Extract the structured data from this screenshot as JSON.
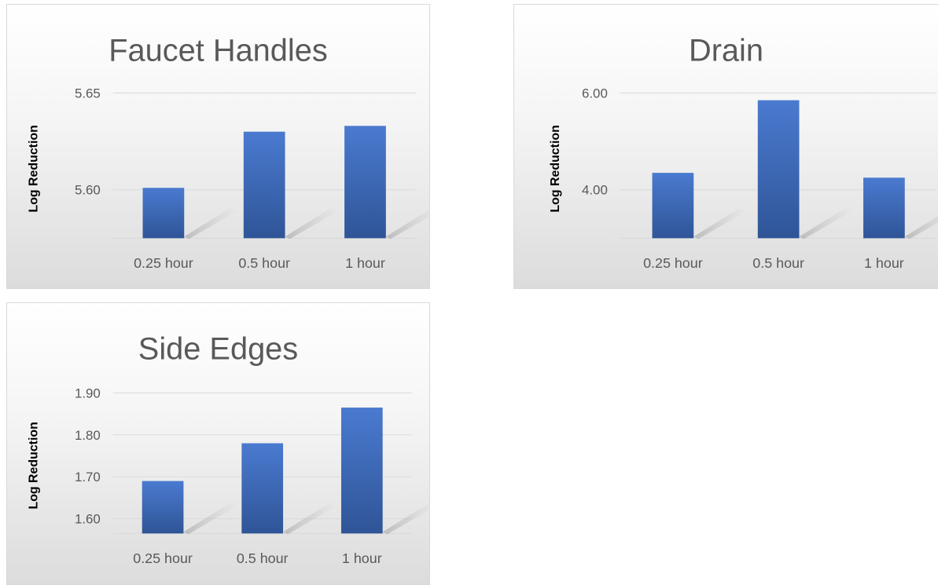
{
  "chart_data": [
    {
      "type": "bar",
      "title": "Faucet Handles",
      "ylabel": "Log Reduction",
      "categories": [
        "0.25 hour",
        "0.5 hour",
        "1 hour"
      ],
      "values": [
        5.601,
        5.63,
        5.633
      ],
      "ylim": [
        5.575,
        5.65
      ],
      "yticks": [
        {
          "value": 5.6,
          "label": "5.60"
        },
        {
          "value": 5.65,
          "label": "5.65"
        }
      ],
      "grid": true,
      "colors": {
        "bar": "#4472c4",
        "bar_top": "#4a7ad0",
        "bar_bottom": "#2f5597",
        "grid": "#d9d9d9",
        "text": "#595959"
      }
    },
    {
      "type": "bar",
      "title": "Drain",
      "ylabel": "Log Reduction",
      "categories": [
        "0.25 hour",
        "0.5 hour",
        "1 hour"
      ],
      "values": [
        4.35,
        5.85,
        4.25
      ],
      "ylim": [
        3.0,
        6.0
      ],
      "yticks": [
        {
          "value": 4.0,
          "label": "4.00"
        },
        {
          "value": 6.0,
          "label": "6.00"
        }
      ],
      "grid": true,
      "colors": {
        "bar": "#4472c4",
        "bar_top": "#4a7ad0",
        "bar_bottom": "#2f5597",
        "grid": "#d9d9d9",
        "text": "#595959"
      }
    },
    {
      "type": "bar",
      "title": "Side Edges",
      "ylabel": "Log Reduction",
      "categories": [
        "0.25 hour",
        "0.5 hour",
        "1 hour"
      ],
      "values": [
        1.69,
        1.78,
        1.865
      ],
      "ylim": [
        1.565,
        1.9
      ],
      "yticks": [
        {
          "value": 1.6,
          "label": "1.60"
        },
        {
          "value": 1.7,
          "label": "1.70"
        },
        {
          "value": 1.8,
          "label": "1.80"
        },
        {
          "value": 1.9,
          "label": "1.90"
        }
      ],
      "grid": true,
      "colors": {
        "bar": "#4472c4",
        "bar_top": "#4a7ad0",
        "bar_bottom": "#2f5597",
        "grid": "#d9d9d9",
        "text": "#595959"
      }
    }
  ]
}
